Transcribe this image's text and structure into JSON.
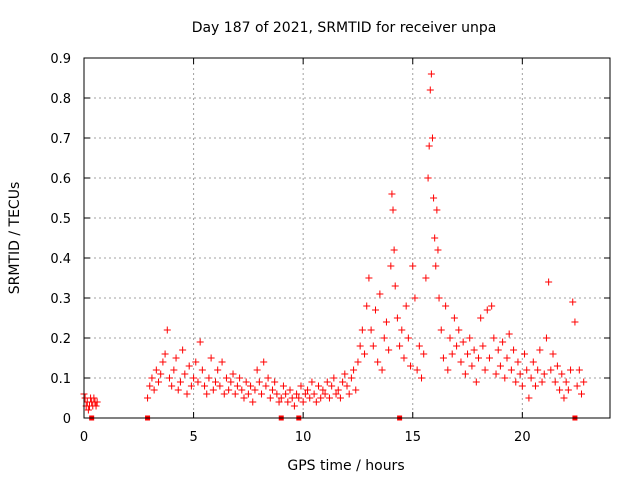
{
  "chart_data": {
    "type": "scatter",
    "title": "Day 187 of 2021, SRMTID for receiver unpa",
    "xlabel": "GPS time / hours",
    "ylabel": "SRMTID / TECUs",
    "xlim": [
      0,
      24
    ],
    "ylim": [
      0,
      0.9
    ],
    "xticks": [
      0,
      5,
      10,
      15,
      20
    ],
    "xtick_labels": [
      "0",
      "5",
      "10",
      "15",
      "20"
    ],
    "yticks": [
      0,
      0.1,
      0.2,
      0.3,
      0.4,
      0.5,
      0.6,
      0.7,
      0.8,
      0.9
    ],
    "ytick_labels": [
      "0",
      "0.1",
      "0.2",
      "0.3",
      "0.4",
      "0.5",
      "0.6",
      "0.7",
      "0.8",
      "0.9"
    ],
    "grid": true,
    "marker": "+",
    "color": "#ff0000",
    "series": [
      {
        "name": "SRMTID",
        "x": [
          0.0,
          0.05,
          0.1,
          0.15,
          0.2,
          0.25,
          0.3,
          0.35,
          0.4,
          0.45,
          0.5,
          0.55,
          0.6,
          2.9,
          3.0,
          3.1,
          3.2,
          3.3,
          3.4,
          3.5,
          3.6,
          3.7,
          3.8,
          3.9,
          4.0,
          4.1,
          4.2,
          4.3,
          4.4,
          4.5,
          4.6,
          4.7,
          4.8,
          4.9,
          5.0,
          5.1,
          5.2,
          5.3,
          5.4,
          5.5,
          5.6,
          5.7,
          5.8,
          5.9,
          6.0,
          6.1,
          6.2,
          6.3,
          6.4,
          6.5,
          6.6,
          6.7,
          6.8,
          6.9,
          7.0,
          7.1,
          7.2,
          7.3,
          7.4,
          7.5,
          7.6,
          7.7,
          7.8,
          7.9,
          8.0,
          8.1,
          8.2,
          8.3,
          8.4,
          8.5,
          8.6,
          8.7,
          8.8,
          8.9,
          9.0,
          9.1,
          9.2,
          9.3,
          9.4,
          9.5,
          9.6,
          9.7,
          9.8,
          9.9,
          10.0,
          10.1,
          10.2,
          10.3,
          10.4,
          10.5,
          10.6,
          10.7,
          10.8,
          10.9,
          11.0,
          11.1,
          11.2,
          11.3,
          11.4,
          11.5,
          11.6,
          11.7,
          11.8,
          11.9,
          12.0,
          12.1,
          12.2,
          12.3,
          12.4,
          12.5,
          12.6,
          12.7,
          12.8,
          12.9,
          13.0,
          13.1,
          13.2,
          13.3,
          13.4,
          13.5,
          13.6,
          13.7,
          13.8,
          13.9,
          14.0,
          14.05,
          14.1,
          14.15,
          14.2,
          14.3,
          14.4,
          14.5,
          14.6,
          14.7,
          14.8,
          14.9,
          15.0,
          15.1,
          15.2,
          15.3,
          15.4,
          15.5,
          15.6,
          15.7,
          15.75,
          15.8,
          15.85,
          15.9,
          15.95,
          16.0,
          16.05,
          16.1,
          16.15,
          16.2,
          16.3,
          16.4,
          16.5,
          16.6,
          16.7,
          16.8,
          16.9,
          17.0,
          17.1,
          17.2,
          17.3,
          17.4,
          17.5,
          17.6,
          17.7,
          17.8,
          17.9,
          18.0,
          18.1,
          18.2,
          18.3,
          18.4,
          18.5,
          18.6,
          18.7,
          18.8,
          18.9,
          19.0,
          19.1,
          19.2,
          19.3,
          19.4,
          19.5,
          19.6,
          19.7,
          19.8,
          19.9,
          20.0,
          20.1,
          20.2,
          20.3,
          20.4,
          20.5,
          20.6,
          20.7,
          20.8,
          20.9,
          21.0,
          21.1,
          21.2,
          21.3,
          21.4,
          21.5,
          21.6,
          21.7,
          21.8,
          21.9,
          22.0,
          22.1,
          22.2,
          22.3,
          22.4,
          22.5,
          22.6,
          22.7,
          22.8
        ],
        "y": [
          0.06,
          0.05,
          0.03,
          0.04,
          0.02,
          0.03,
          0.05,
          0.04,
          0.03,
          0.05,
          0.04,
          0.03,
          0.04,
          0.05,
          0.08,
          0.1,
          0.07,
          0.12,
          0.09,
          0.11,
          0.14,
          0.16,
          0.22,
          0.1,
          0.08,
          0.12,
          0.15,
          0.07,
          0.09,
          0.17,
          0.11,
          0.06,
          0.13,
          0.08,
          0.1,
          0.14,
          0.09,
          0.19,
          0.12,
          0.08,
          0.06,
          0.1,
          0.15,
          0.07,
          0.09,
          0.12,
          0.08,
          0.14,
          0.06,
          0.1,
          0.07,
          0.09,
          0.11,
          0.06,
          0.08,
          0.1,
          0.07,
          0.05,
          0.09,
          0.06,
          0.08,
          0.04,
          0.07,
          0.12,
          0.09,
          0.06,
          0.14,
          0.08,
          0.1,
          0.05,
          0.07,
          0.09,
          0.06,
          0.04,
          0.05,
          0.08,
          0.06,
          0.04,
          0.07,
          0.05,
          0.03,
          0.06,
          0.05,
          0.08,
          0.04,
          0.06,
          0.07,
          0.05,
          0.09,
          0.06,
          0.04,
          0.08,
          0.05,
          0.07,
          0.06,
          0.09,
          0.05,
          0.08,
          0.1,
          0.06,
          0.07,
          0.05,
          0.09,
          0.11,
          0.08,
          0.06,
          0.1,
          0.12,
          0.07,
          0.14,
          0.18,
          0.22,
          0.16,
          0.28,
          0.35,
          0.22,
          0.18,
          0.27,
          0.14,
          0.31,
          0.12,
          0.2,
          0.24,
          0.17,
          0.38,
          0.56,
          0.52,
          0.42,
          0.33,
          0.25,
          0.18,
          0.22,
          0.15,
          0.28,
          0.2,
          0.13,
          0.38,
          0.3,
          0.12,
          0.18,
          0.1,
          0.16,
          0.35,
          0.6,
          0.68,
          0.82,
          0.86,
          0.7,
          0.55,
          0.45,
          0.38,
          0.52,
          0.42,
          0.3,
          0.22,
          0.15,
          0.28,
          0.12,
          0.2,
          0.16,
          0.25,
          0.18,
          0.22,
          0.14,
          0.19,
          0.11,
          0.16,
          0.2,
          0.13,
          0.17,
          0.09,
          0.15,
          0.25,
          0.18,
          0.12,
          0.27,
          0.15,
          0.28,
          0.2,
          0.11,
          0.17,
          0.13,
          0.19,
          0.1,
          0.15,
          0.21,
          0.12,
          0.17,
          0.09,
          0.14,
          0.11,
          0.08,
          0.16,
          0.12,
          0.05,
          0.1,
          0.14,
          0.08,
          0.12,
          0.17,
          0.09,
          0.11,
          0.2,
          0.34,
          0.12,
          0.16,
          0.09,
          0.13,
          0.07,
          0.11,
          0.05,
          0.09,
          0.07,
          0.12,
          0.29,
          0.24,
          0.08,
          0.12,
          0.06,
          0.09
        ]
      }
    ],
    "gap_markers_x": [
      0.35,
      2.9,
      9.0,
      9.8,
      14.4,
      22.4
    ]
  }
}
